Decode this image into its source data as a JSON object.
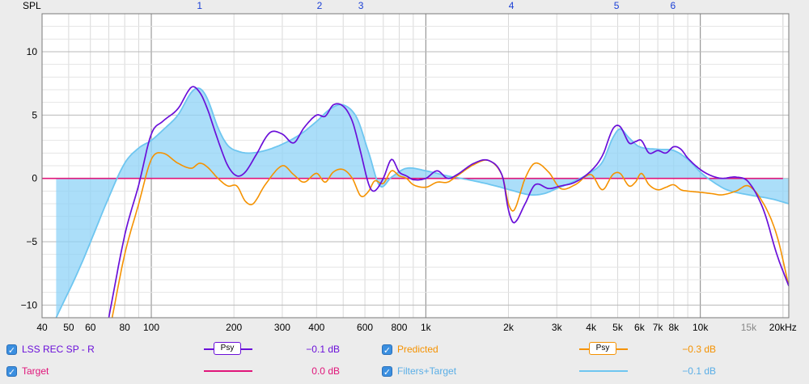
{
  "chart_data": {
    "type": "line",
    "xscale": "log",
    "ylabel": "SPL",
    "xlim": [
      40,
      21000
    ],
    "ylim": [
      -11,
      13
    ],
    "y_ticks": [
      10,
      5,
      0,
      -5,
      -10
    ],
    "y_tick_labels": [
      "10",
      "5",
      "0",
      "−5",
      "−10"
    ],
    "x_ticks": [
      40,
      50,
      60,
      80,
      100,
      200,
      300,
      400,
      600,
      800,
      1000,
      2000,
      3000,
      4000,
      5000,
      6000,
      7000,
      8000,
      10000,
      15000,
      20000
    ],
    "x_tick_labels": [
      "40",
      "50",
      "60",
      "80",
      "100",
      "200",
      "300",
      "400",
      "600",
      "800",
      "1k",
      "2k",
      "3k",
      "4k",
      "5k",
      "6k",
      "7k",
      "8k",
      "10k",
      "15k",
      "20kHz"
    ],
    "grid": true,
    "filter_markers": [
      {
        "label": "1",
        "freq": 150
      },
      {
        "label": "2",
        "freq": 410
      },
      {
        "label": "3",
        "freq": 580
      },
      {
        "label": "4",
        "freq": 2050
      },
      {
        "label": "5",
        "freq": 4950
      },
      {
        "label": "6",
        "freq": 7950
      }
    ],
    "series": [
      {
        "name": "Target",
        "color": "#e0157a",
        "x": [
          40,
          60,
          100,
          200,
          300,
          500,
          1000,
          2000,
          5000,
          10000,
          20000
        ],
        "y": [
          0,
          0,
          0,
          0,
          0,
          0,
          0,
          0,
          0,
          0,
          0
        ]
      },
      {
        "name": "Filters+Target",
        "color": "#6ec6f0",
        "x": [
          45,
          55,
          70,
          80,
          90,
          100,
          110,
          125,
          140,
          150,
          160,
          175,
          190,
          210,
          230,
          260,
          300,
          350,
          400,
          450,
          500,
          560,
          620,
          680,
          750,
          850,
          1000,
          1200,
          1500,
          1800,
          2100,
          2400,
          2700,
          3000,
          3500,
          4000,
          4400,
          4800,
          5100,
          5500,
          6000,
          7000,
          8000,
          9000,
          10000,
          11000,
          12500,
          15000,
          18000,
          21000
        ],
        "y": [
          -11,
          -7,
          -1.5,
          1.2,
          2.4,
          3.0,
          3.8,
          5.0,
          6.8,
          7.1,
          6.3,
          4.0,
          2.6,
          2.1,
          2.0,
          2.2,
          2.7,
          3.5,
          4.5,
          5.5,
          5.8,
          4.8,
          2.0,
          -0.6,
          0.1,
          0.8,
          0.6,
          0.2,
          -0.2,
          -0.6,
          -1.0,
          -1.3,
          -1.2,
          -0.8,
          -0.2,
          0.5,
          1.3,
          3.2,
          3.9,
          3.2,
          2.5,
          2.3,
          2.2,
          1.5,
          0.5,
          -0.2,
          -0.9,
          -1.3,
          -1.6,
          -2.0
        ]
      },
      {
        "name": "LSS REC SP - R",
        "color": "#6a0fd9",
        "x": [
          70,
          80,
          90,
          100,
          110,
          125,
          140,
          150,
          160,
          175,
          190,
          205,
          220,
          240,
          270,
          300,
          330,
          360,
          400,
          430,
          460,
          500,
          540,
          580,
          620,
          650,
          700,
          750,
          800,
          850,
          900,
          1000,
          1100,
          1200,
          1300,
          1500,
          1700,
          1900,
          2000,
          2100,
          2300,
          2500,
          2800,
          3100,
          3500,
          4000,
          4400,
          4800,
          5100,
          5500,
          5800,
          6100,
          6500,
          7000,
          7500,
          8000,
          8500,
          9000,
          10000,
          11000,
          12000,
          13500,
          15000,
          17000,
          19000,
          21000
        ],
        "y": [
          -11,
          -4.5,
          -0.5,
          3.5,
          4.5,
          5.5,
          7.2,
          6.8,
          5.5,
          3.0,
          1.0,
          0.2,
          0.5,
          1.8,
          3.6,
          3.5,
          2.8,
          4.0,
          5.0,
          4.9,
          5.8,
          5.7,
          4.5,
          2.0,
          -0.5,
          -1.0,
          0.0,
          1.5,
          0.5,
          0.2,
          -0.1,
          0.0,
          0.6,
          0.0,
          0.3,
          1.2,
          1.4,
          0.2,
          -2.5,
          -3.5,
          -2.0,
          -0.5,
          -0.8,
          -0.6,
          -0.3,
          0.6,
          1.8,
          3.9,
          4.1,
          2.8,
          2.9,
          3.0,
          2.0,
          2.2,
          2.0,
          2.5,
          2.3,
          1.6,
          0.7,
          0.2,
          0.0,
          0.1,
          -0.3,
          -2.5,
          -6.0,
          -8.5
        ]
      },
      {
        "name": "Predicted",
        "color": "#f59200",
        "x": [
          72,
          80,
          90,
          100,
          110,
          125,
          140,
          150,
          160,
          175,
          190,
          205,
          220,
          235,
          260,
          300,
          330,
          360,
          400,
          430,
          460,
          500,
          540,
          580,
          620,
          650,
          700,
          750,
          800,
          850,
          900,
          1000,
          1100,
          1200,
          1300,
          1500,
          1700,
          1900,
          2000,
          2100,
          2300,
          2500,
          2800,
          3100,
          3500,
          4000,
          4400,
          4800,
          5100,
          5500,
          5800,
          6100,
          6500,
          7000,
          7500,
          8000,
          8500,
          9000,
          10000,
          11000,
          12000,
          13500,
          15000,
          17000,
          19000,
          21000
        ],
        "y": [
          -11,
          -6.0,
          -2.0,
          1.5,
          2.0,
          1.2,
          0.8,
          1.2,
          0.9,
          0.0,
          -0.6,
          -0.6,
          -1.8,
          -2.0,
          -0.5,
          1.0,
          0.3,
          -0.3,
          0.4,
          -0.3,
          0.5,
          0.7,
          0.0,
          -1.4,
          -1.0,
          -0.2,
          -0.4,
          0.6,
          0.2,
          0.0,
          -0.5,
          -0.7,
          -0.3,
          -0.3,
          0.2,
          1.1,
          1.4,
          0.2,
          -2.0,
          -2.5,
          0.0,
          1.2,
          0.5,
          -0.8,
          -0.5,
          0.3,
          -0.9,
          0.3,
          0.4,
          -0.6,
          -0.3,
          0.4,
          -0.5,
          -0.9,
          -0.7,
          -0.5,
          -0.9,
          -1.0,
          -1.1,
          -1.2,
          -1.3,
          -1.0,
          -0.6,
          -2.0,
          -4.5,
          -8.5
        ]
      }
    ]
  },
  "legend": [
    {
      "name": "LSS REC SP - R",
      "color": "#6a0fd9",
      "box_label": "Psy",
      "value": "−0.1 dB",
      "checked": true
    },
    {
      "name": "Predicted",
      "color": "#f59200",
      "box_label": "Psy",
      "value": "−0.3 dB",
      "checked": true
    },
    {
      "name": "Target",
      "color": "#e0157a",
      "value": "0.0 dB",
      "checked": true
    },
    {
      "name": "Filters+Target",
      "color": "#6ec6f0",
      "value": "−0.1 dB",
      "checked": true
    }
  ]
}
